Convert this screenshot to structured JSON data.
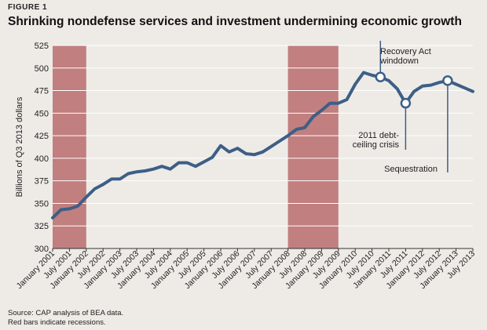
{
  "header": {
    "figure_label": "FIGURE 1",
    "title": "Shrinking nondefense services and investment undermining economic growth"
  },
  "footnotes": {
    "source": "Source: CAP analysis of BEA data.",
    "note": "Red bars indicate recessions."
  },
  "colors": {
    "background": "#eeebe7",
    "line": "#3d5f86",
    "recession": "#c17f7f",
    "grid": "#ffffff",
    "marker_fill": "#ffffff"
  },
  "chart_data": {
    "type": "line",
    "title": "Shrinking nondefense services and investment undermining economic growth",
    "ylabel": "Billions of Q3 2013 dollars",
    "xlabel": "",
    "ylim": [
      300,
      525
    ],
    "yticks": [
      300,
      325,
      350,
      375,
      400,
      425,
      450,
      475,
      500,
      525
    ],
    "grid": "horizontal",
    "xtick_labels": [
      "January 2001",
      "July 2001",
      "January 2002",
      "July 2002",
      "January 2003",
      "July 2003",
      "January 2004",
      "July 2004",
      "January 2005",
      "July 2005",
      "January 2006",
      "July 2006",
      "January 2007",
      "July 2007",
      "January 2008",
      "July 2008",
      "January 2009",
      "July 2009",
      "January 2010",
      "July 2010",
      "January 2011",
      "July 2011",
      "January 2012",
      "July 2012",
      "January 2013",
      "July 2013"
    ],
    "series": [
      {
        "values": [
          334,
          343,
          344,
          347,
          357,
          366,
          371,
          377,
          377,
          383,
          385,
          386,
          388,
          391,
          388,
          395,
          395,
          391,
          396,
          401,
          414,
          407,
          411,
          405,
          404,
          407,
          413,
          419,
          425,
          432,
          434,
          446,
          453,
          461,
          461,
          465,
          482,
          495,
          492,
          490,
          486,
          477,
          461,
          474,
          480,
          481,
          484,
          486,
          482,
          478,
          474
        ]
      }
    ],
    "recessions": [
      [
        "January 2001",
        "January 2002"
      ],
      [
        "January 2008",
        "July 2009"
      ]
    ],
    "annotations": [
      {
        "lines": [
          "Recovery Act",
          "winddown"
        ],
        "quarter": 39,
        "value": 490
      },
      {
        "lines": [
          "2011 debt-",
          "ceiling crisis"
        ],
        "quarter": 42,
        "value": 461
      },
      {
        "lines": [
          "Sequestration"
        ],
        "quarter": 47,
        "value": 486
      }
    ]
  }
}
